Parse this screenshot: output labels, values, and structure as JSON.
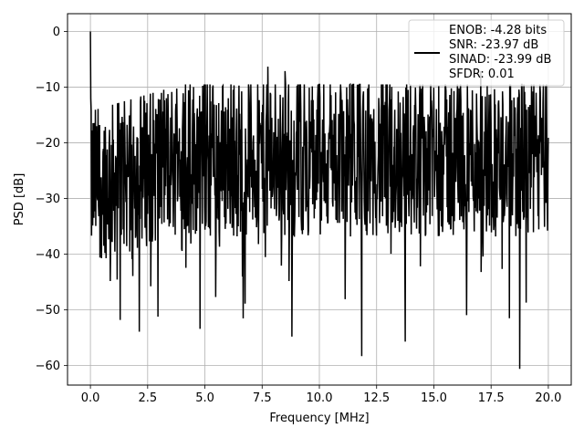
{
  "chart_data": {
    "type": "line",
    "xlabel": "Frequency [MHz]",
    "ylabel": "PSD [dB]",
    "xlim": [
      -1.0,
      21.0
    ],
    "ylim": [
      -63.5,
      3.2
    ],
    "xticks": [
      0.0,
      2.5,
      5.0,
      7.5,
      10.0,
      12.5,
      15.0,
      17.5,
      20.0
    ],
    "xtick_labels": [
      "0.0",
      "2.5",
      "5.0",
      "7.5",
      "10.0",
      "12.5",
      "15.0",
      "17.5",
      "20.0"
    ],
    "yticks": [
      0,
      -10,
      -20,
      -30,
      -40,
      -50,
      -60
    ],
    "ytick_labels": [
      "0",
      "−10",
      "−20",
      "−30",
      "−40",
      "−50",
      "−60"
    ],
    "grid": true,
    "legend_position": "top-right",
    "series": [
      {
        "name": "ENOB: -4.28 bits\nSNR: -23.97 dB\nSINAD: -23.99 dB\nSFDR: 0.01",
        "color": "#000000",
        "x_range": [
          0.0,
          20.0
        ],
        "points": 1200,
        "peak": {
          "x": 0.0,
          "y": 0.0
        },
        "noise_floor_mean": -22.5,
        "noise_floor_spread": 18.0,
        "notable_minima": [
          {
            "x": 11.85,
            "y": -58.3
          },
          {
            "x": 13.75,
            "y": -55.7
          },
          {
            "x": 18.75,
            "y": -60.6
          },
          {
            "x": 18.3,
            "y": -51.5
          },
          {
            "x": 8.8,
            "y": -54.8
          },
          {
            "x": 1.3,
            "y": -51.8
          },
          {
            "x": 2.95,
            "y": -51.2
          }
        ],
        "notable_maxima": [
          {
            "x": 7.75,
            "y": -6.3
          },
          {
            "x": 8.5,
            "y": -7.1
          },
          {
            "x": 17.05,
            "y": -7.1
          }
        ]
      }
    ],
    "legend_lines": [
      "ENOB: -4.28 bits",
      "SNR: -23.97 dB",
      "SINAD: -23.99 dB",
      "SFDR: 0.01"
    ]
  }
}
